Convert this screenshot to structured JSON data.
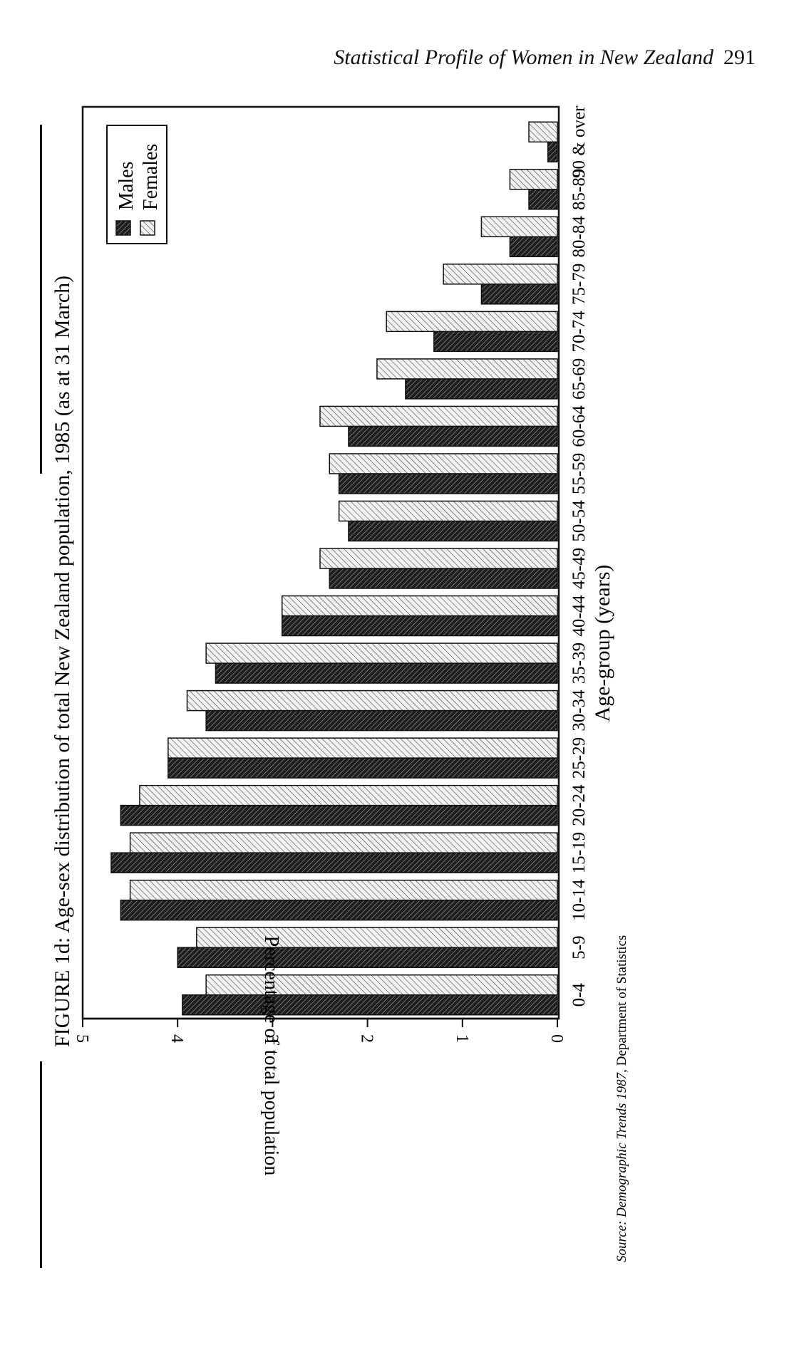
{
  "header": {
    "running_title": "Statistical Profile of Women in New Zealand",
    "page_number": "291"
  },
  "source_note": {
    "prefix": "Source: ",
    "italic_title": "Demographic Trends 1987",
    "suffix": ", Department of Statistics"
  },
  "colors": {
    "ink": "#111111",
    "male_fill": "#1e1e1e",
    "female_fill": "#f2f2f2"
  },
  "chart_data": {
    "type": "bar",
    "orientation": "horizontal (page printed rotated 90 degrees)",
    "title": "FIGURE 1d: Age-sex distribution of total New Zealand population, 1985 (as at 31 March)",
    "xlabel": "Age-group (years)",
    "ylabel": "Percentage of total population",
    "ylim": [
      0,
      5
    ],
    "yticks": [
      "0",
      "1",
      "2",
      "3",
      "4",
      "5"
    ],
    "categories": [
      "0-4",
      "5-9",
      "10-14",
      "15-19",
      "20-24",
      "25-29",
      "30-34",
      "35-39",
      "40-44",
      "45-49",
      "50-54",
      "55-59",
      "60-64",
      "65-69",
      "70-74",
      "75-79",
      "80-84",
      "85-89",
      "90 & over"
    ],
    "series": [
      {
        "name": "Males",
        "pattern": "dark hatch",
        "values": [
          3.95,
          4.0,
          4.6,
          4.7,
          4.6,
          4.1,
          3.7,
          3.6,
          2.9,
          2.4,
          2.2,
          2.3,
          2.2,
          1.6,
          1.3,
          0.8,
          0.5,
          0.3,
          0.1
        ]
      },
      {
        "name": "Females",
        "pattern": "light hatch",
        "values": [
          3.7,
          3.8,
          4.5,
          4.5,
          4.4,
          4.1,
          3.9,
          3.7,
          2.9,
          2.5,
          2.3,
          2.4,
          2.5,
          1.9,
          1.8,
          1.2,
          0.8,
          0.5,
          0.3
        ]
      }
    ],
    "legend": {
      "position": "top-left of plot (top-right in rotated view)",
      "entries": [
        "Males",
        "Females"
      ]
    },
    "grid": false
  }
}
